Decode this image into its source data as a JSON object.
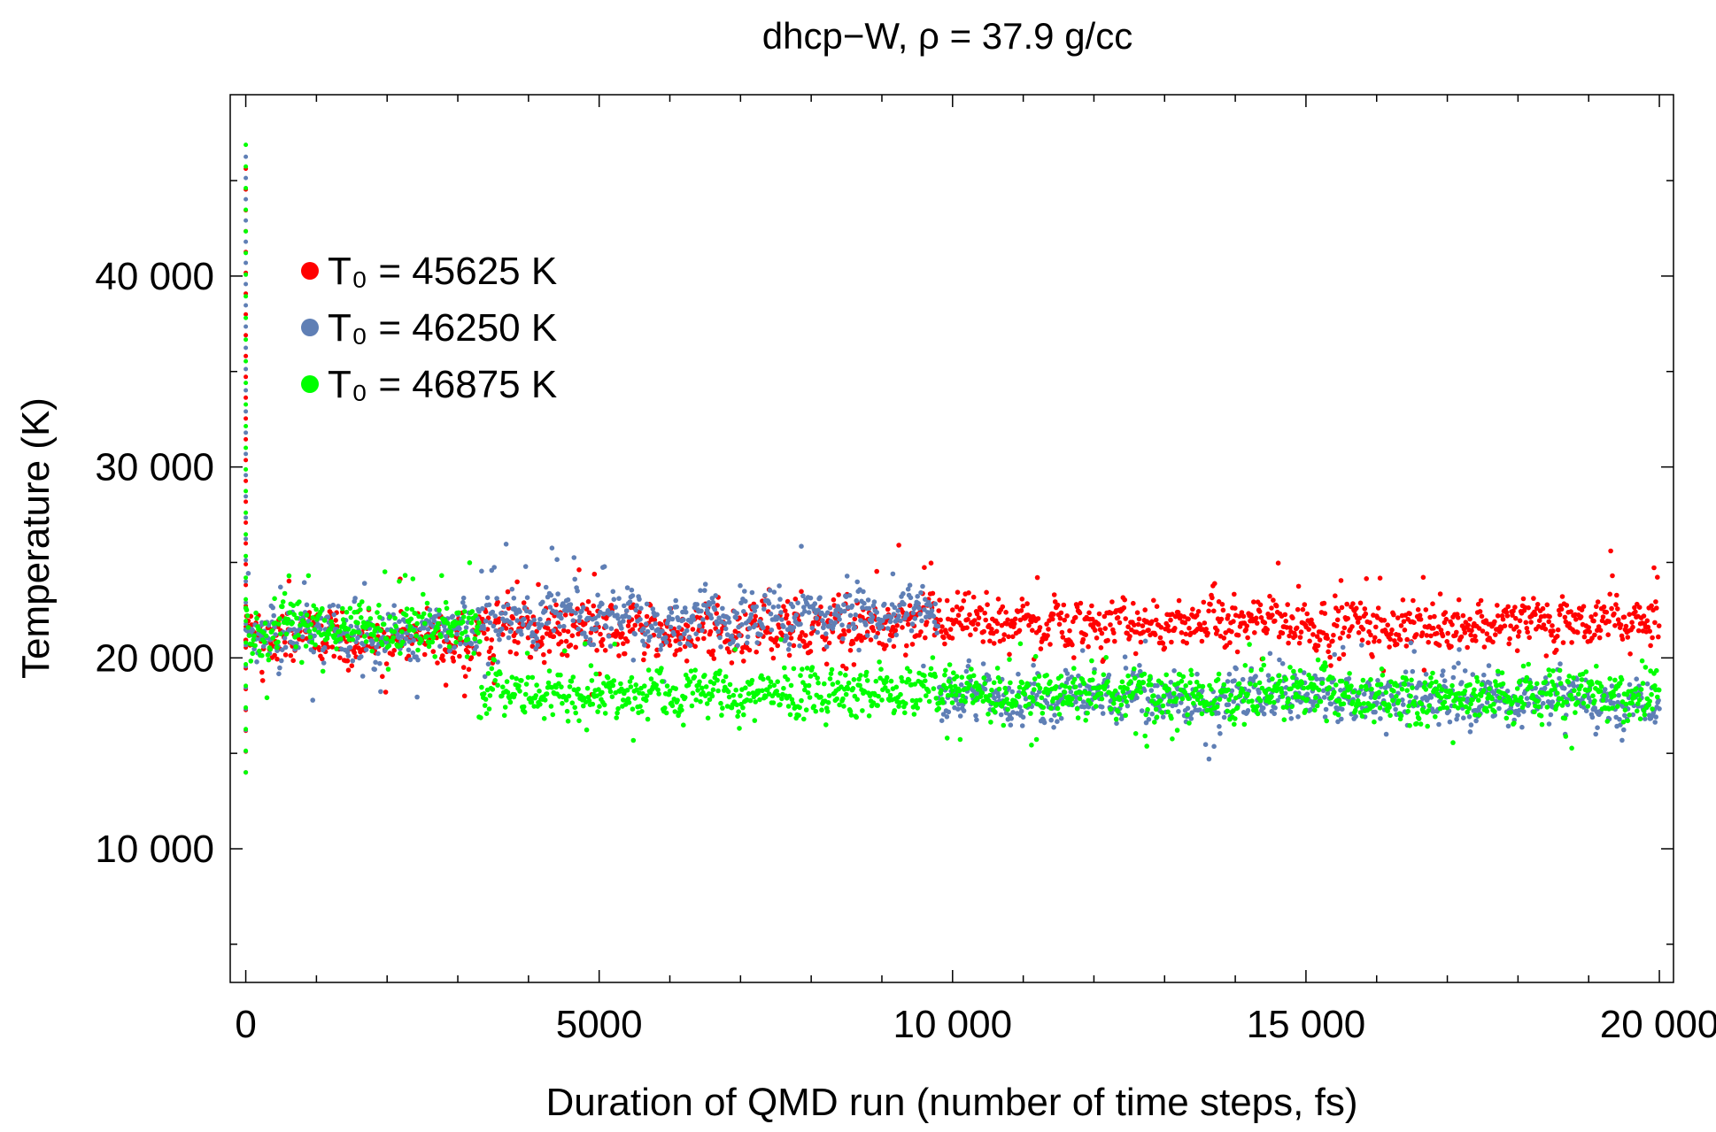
{
  "chart_data": {
    "type": "scatter",
    "title": "dhcp−W, ρ = 37.9 g/cc",
    "xlabel": "Duration of QMD run (number of time steps, fs)",
    "ylabel": "Temperature (K)",
    "xlim": [
      -220,
      20200
    ],
    "ylim": [
      3000,
      49500
    ],
    "x_ticks": [
      0,
      5000,
      10000,
      15000,
      20000
    ],
    "x_tick_labels": [
      "0",
      "5000",
      "10 000",
      "15 000",
      "20 000"
    ],
    "y_ticks": [
      10000,
      20000,
      30000,
      40000
    ],
    "y_tick_labels": [
      "10 000",
      "20 000",
      "30 000",
      "40 000"
    ],
    "grid": false,
    "legend_position": "upper-left",
    "series": [
      {
        "name": "T0 = 45625 K",
        "legend_label": "T₀ = 45625 K",
        "color": "#ff0000",
        "t0": 45625,
        "segments": [
          {
            "x": [
              0,
              3300
            ],
            "mean": 21000,
            "amp": 2600
          },
          {
            "x": [
              3300,
              10000
            ],
            "mean": 21500,
            "amp": 2800
          },
          {
            "x": [
              10000,
              20000
            ],
            "mean": 21800,
            "amp": 2400
          }
        ],
        "min_value": 13600,
        "max_value": 25900
      },
      {
        "name": "T0 = 46250 K",
        "legend_label": "T₀ = 46250 K",
        "color": "#5f7fb5",
        "t0": 46250,
        "segments": [
          {
            "x": [
              0,
              3300
            ],
            "mean": 21300,
            "amp": 2600
          },
          {
            "x": [
              3300,
              9800
            ],
            "mean": 22200,
            "amp": 2600
          },
          {
            "x": [
              9800,
              20000
            ],
            "mean": 17900,
            "amp": 2400
          }
        ],
        "min_value": 14700,
        "max_value": 27500
      },
      {
        "name": "T0 = 46875 K",
        "legend_label": "T₀ = 46875 K",
        "color": "#00ff00",
        "t0": 46875,
        "segments": [
          {
            "x": [
              0,
              3300
            ],
            "mean": 21500,
            "amp": 2600
          },
          {
            "x": [
              3300,
              10000
            ],
            "mean": 18200,
            "amp": 2400
          },
          {
            "x": [
              10000,
              20000
            ],
            "mean": 18100,
            "amp": 2400
          }
        ],
        "min_value": 14300,
        "max_value": 26200
      }
    ]
  }
}
